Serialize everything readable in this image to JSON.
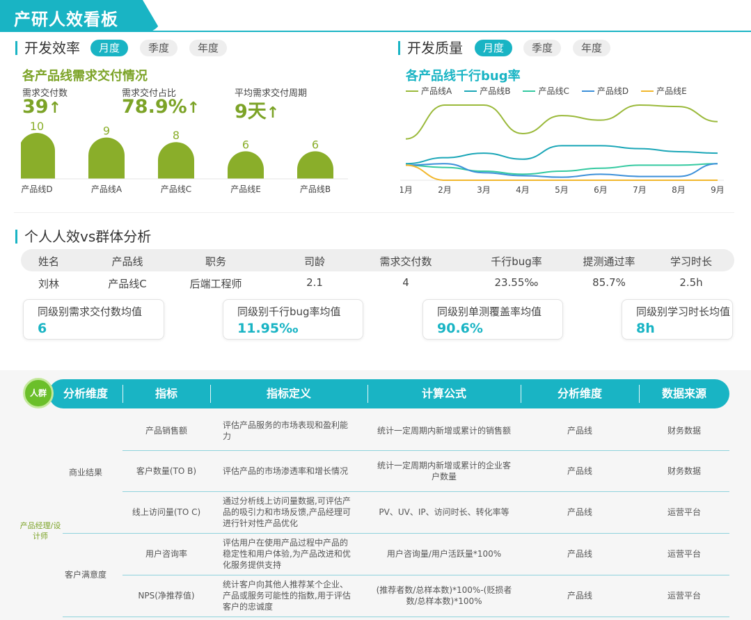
{
  "header": {
    "title": "产研人效看板"
  },
  "efficiency": {
    "title": "开发效率",
    "pills": [
      "月度",
      "季度",
      "年度"
    ],
    "subtitle": "各产品线需求交付情况",
    "kpis": [
      {
        "label": "需求交付数",
        "value": "39"
      },
      {
        "label": "需求交付占比",
        "value": "78.9%"
      },
      {
        "label": "平均需求交付周期",
        "value": "9天"
      }
    ],
    "arrow": "↑"
  },
  "chart_data": [
    {
      "type": "bar",
      "categories": [
        "产品线D",
        "产品线A",
        "产品线C",
        "产品线E",
        "产品线B"
      ],
      "values": [
        10,
        9,
        8,
        6,
        6
      ],
      "colors": {
        "bar": "#8aae2a",
        "label": "#8aae2a"
      }
    },
    {
      "type": "line",
      "title": "各产品线千行bug率",
      "categories": [
        "1月",
        "2月",
        "3月",
        "4月",
        "5月",
        "6月",
        "7月",
        "8月",
        "9月"
      ],
      "series": [
        {
          "name": "产品线A",
          "color": "#9ab93a",
          "values": [
            0.55,
            1.0,
            1.0,
            0.62,
            0.86,
            0.8,
            1.0,
            0.98,
            0.78
          ]
        },
        {
          "name": "产品线B",
          "color": "#1aa6b7",
          "values": [
            0.22,
            0.3,
            0.36,
            0.28,
            0.46,
            0.46,
            0.42,
            0.38,
            0.36
          ]
        },
        {
          "name": "产品线C",
          "color": "#33c9a0",
          "values": [
            0.2,
            0.17,
            0.12,
            0.08,
            0.12,
            0.16,
            0.2,
            0.2,
            0.22
          ]
        },
        {
          "name": "产品线D",
          "color": "#3b8fd9",
          "values": [
            0.2,
            0.22,
            0.1,
            0.06,
            0.04,
            0.08,
            0.05,
            0.05,
            0.22
          ]
        },
        {
          "name": "产品线E",
          "color": "#f2b72c",
          "values": [
            0.2,
            0.0,
            0.0,
            0.0,
            0.0,
            0.0,
            0.0,
            0.0,
            0.0
          ]
        }
      ]
    }
  ],
  "quality": {
    "title": "开发质量",
    "pills": [
      "月度",
      "季度",
      "年度"
    ]
  },
  "personal": {
    "title": "个人人效vs群体分析",
    "headers": [
      "姓名",
      "产品线",
      "职务",
      "司龄",
      "需求交付数",
      "千行bug率",
      "提测通过率",
      "学习时长"
    ],
    "row": [
      "刘林",
      "产品线C",
      "后端工程师",
      "2.1",
      "4",
      "23.55‰",
      "85.7%",
      "2.5h"
    ],
    "cards": [
      {
        "label": "同级别需求交付数均值",
        "value": "6"
      },
      {
        "label": "同级别千行bug率均值",
        "value": "11.95‰"
      },
      {
        "label": "同级别单测覆盖率均值",
        "value": "90.6%"
      },
      {
        "label": "同级别学习时长均值",
        "value": "8h"
      }
    ]
  },
  "matrix": {
    "badge": "人群",
    "headers": [
      "分析维度",
      "指标",
      "指标定义",
      "计算公式",
      "分析维度",
      "数据来源"
    ],
    "role": "产品经理/设计师",
    "groups": [
      "商业结果",
      "客户满意度"
    ],
    "rows": [
      {
        "indicator": "产品销售额",
        "definition": "评估产品服务的市场表现和盈利能力",
        "formula": "统计一定周期内新增或累计的销售额",
        "dim": "产品线",
        "source": "财务数据"
      },
      {
        "indicator": "客户数量(TO B)",
        "definition": "评估产品的市场渗透率和增长情况",
        "formula": "统计一定周期内新增或累计的企业客户数量",
        "dim": "产品线",
        "source": "财务数据"
      },
      {
        "indicator": "线上访问量(TO C)",
        "definition": "通过分析线上访问量数据,可评估产品的吸引力和市场反馈,产品经理可进行针对性产品优化",
        "formula": "PV、UV、IP、访问时长、转化率等",
        "dim": "产品线",
        "source": "运营平台"
      },
      {
        "indicator": "用户咨询率",
        "definition": "评估用户在使用产品过程中产品的稳定性和用户体验,为产品改进和优化服务提供支持",
        "formula": "用户咨询量/用户活跃量*100%",
        "dim": "产品线",
        "source": "运营平台"
      },
      {
        "indicator": "NPS(净推荐值)",
        "definition": "统计客户向其他人推荐某个企业、产品或服务可能性的指数,用于评估客户的忠诚度",
        "formula": "(推荐者数/总样本数)*100%-(贬损者数/总样本数)*100%",
        "dim": "产品线",
        "source": "运营平台"
      }
    ]
  }
}
